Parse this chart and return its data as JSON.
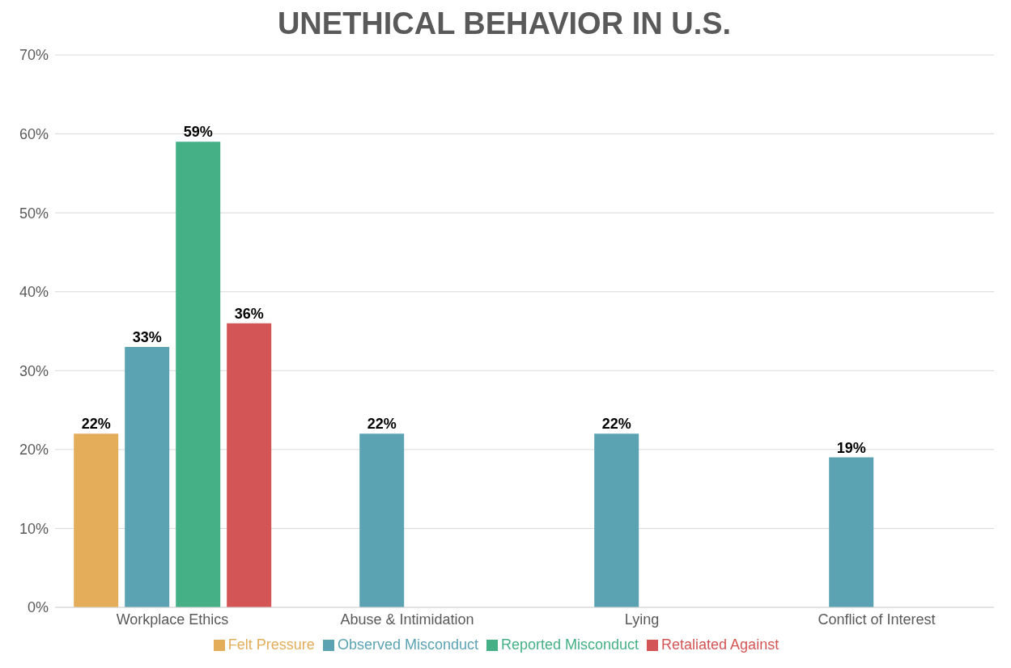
{
  "chart_data": {
    "type": "bar",
    "title": "UNETHICAL BEHAVIOR IN U.S.",
    "categories": [
      "Workplace Ethics",
      "Abuse & Intimidation",
      "Lying",
      "Conflict of Interest"
    ],
    "series": [
      {
        "name": "Felt Pressure",
        "color": "#e3ad5a",
        "values": [
          22,
          null,
          null,
          null
        ],
        "value_labels": [
          "22%",
          null,
          null,
          null
        ]
      },
      {
        "name": "Observed Misconduct",
        "color": "#5ba3b3",
        "values": [
          33,
          22,
          22,
          19
        ],
        "value_labels": [
          "33%",
          "22%",
          "22%",
          "19%"
        ]
      },
      {
        "name": "Reported Misconduct",
        "color": "#45b086",
        "values": [
          59,
          null,
          null,
          null
        ],
        "value_labels": [
          "59%",
          null,
          null,
          null
        ]
      },
      {
        "name": "Retaliated Against",
        "color": "#d45555",
        "values": [
          36,
          null,
          null,
          null
        ],
        "value_labels": [
          "36%",
          null,
          null,
          null
        ]
      }
    ],
    "ylim": [
      0,
      70
    ],
    "yticks": [
      {
        "value": 0,
        "label": "0%"
      },
      {
        "value": 10,
        "label": "10%"
      },
      {
        "value": 20,
        "label": "20%"
      },
      {
        "value": 30,
        "label": "30%"
      },
      {
        "value": 40,
        "label": "40%"
      },
      {
        "value": 50,
        "label": "50%"
      },
      {
        "value": 60,
        "label": "60%"
      },
      {
        "value": 70,
        "label": "70%"
      }
    ],
    "grid": "y",
    "legend": "bottom"
  }
}
